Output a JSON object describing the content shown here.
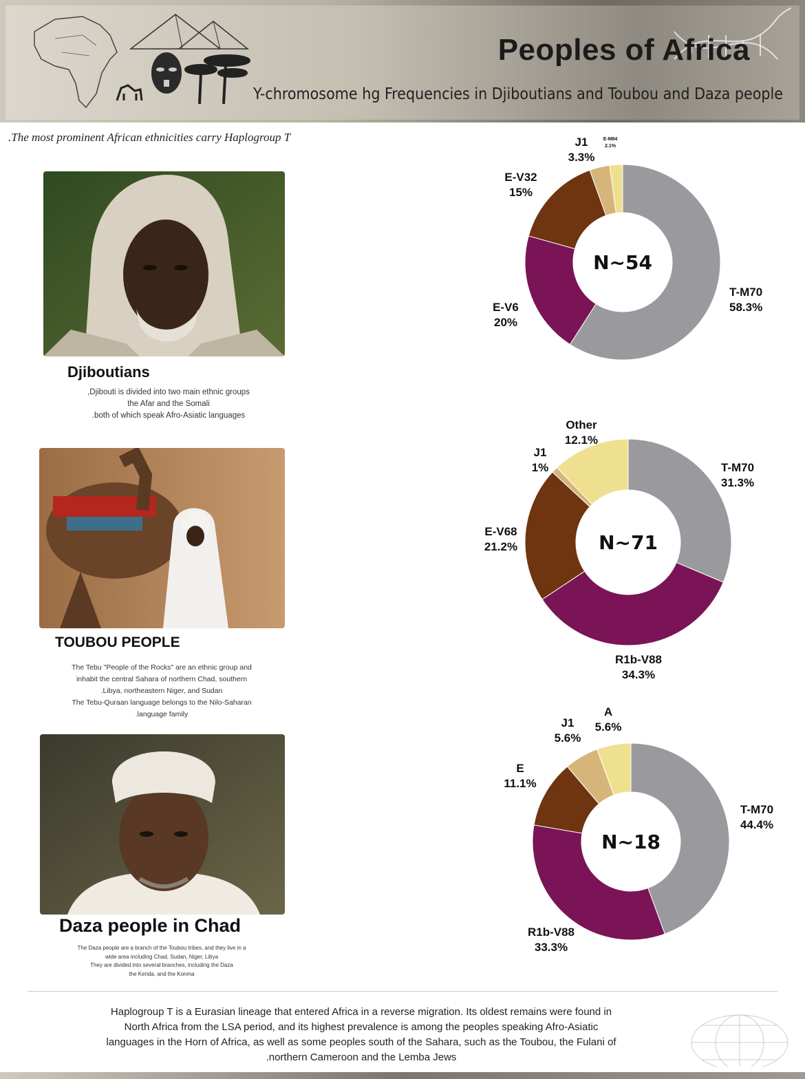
{
  "header": {
    "title": "Peoples of Africa",
    "subtitle": "Y-chromosome hg Frequencies in Djiboutians and Toubou and Daza people"
  },
  "tagline": ".The most prominent African ethnicities carry Haplogroup T",
  "groups": [
    {
      "name": "Djiboutians",
      "desc": [
        ",Djibouti is divided into two main ethnic groups",
        "the Afar and the Somali",
        ".both of which speak Afro-Asiatic languages"
      ]
    },
    {
      "name": "TOUBOU PEOPLE",
      "desc": [
        "The Tebu \"People of the Rocks\" are an ethnic group and",
        "inhabit the central Sahara of northern Chad, southern",
        ".Libya, northeastern Niger, and Sudan",
        "The Tebu-Quraan language belongs to the Nilo-Saharan",
        ".language family"
      ]
    },
    {
      "name": "Daza people in Chad",
      "desc": [
        "The Daza people are a branch of the Toubou tribes, and they live in a",
        "wide area including Chad, Sudan, Niger, Libya",
        "They are divided into several branches, including the Daza",
        "the Kerida, and the Konma"
      ]
    }
  ],
  "colors": {
    "T-M70": "#9a9a9e",
    "R1b-V88": "#7a1456",
    "E-V6": "#7a1456",
    "E-V32": "#6e3510",
    "E-V68": "#6e3510",
    "E": "#6e3510",
    "J1": "#d6b57a",
    "E-M84": "#eee08e",
    "Other": "#eee08e",
    "A": "#eee08e"
  },
  "chart_data": [
    {
      "type": "pie",
      "center_label": "N~54",
      "slices": [
        {
          "label": "T-M70",
          "value": 58.3,
          "text": "58.3%"
        },
        {
          "label": "E-V6",
          "value": 20,
          "text": "20%"
        },
        {
          "label": "E-V32",
          "value": 15,
          "text": "15%"
        },
        {
          "label": "J1",
          "value": 3.3,
          "text": "3.3%"
        },
        {
          "label": "E-M84",
          "value": 2.1,
          "text": "2.1%"
        }
      ]
    },
    {
      "type": "pie",
      "center_label": "N~71",
      "slices": [
        {
          "label": "T-M70",
          "value": 31.3,
          "text": "31.3%"
        },
        {
          "label": "R1b-V88",
          "value": 34.3,
          "text": "34.3%"
        },
        {
          "label": "E-V68",
          "value": 21.2,
          "text": "21.2%"
        },
        {
          "label": "J1",
          "value": 1,
          "text": "1%"
        },
        {
          "label": "Other",
          "value": 12.1,
          "text": "12.1%"
        }
      ]
    },
    {
      "type": "pie",
      "center_label": "N~18",
      "slices": [
        {
          "label": "T-M70",
          "value": 44.4,
          "text": "44.4%"
        },
        {
          "label": "R1b-V88",
          "value": 33.3,
          "text": "33.3%"
        },
        {
          "label": "E",
          "value": 11.1,
          "text": "11.1%"
        },
        {
          "label": "J1",
          "value": 5.6,
          "text": "5.6%"
        },
        {
          "label": "A",
          "value": 5.6,
          "text": "5.6%"
        }
      ]
    }
  ],
  "footer": [
    "Haplogroup T is a Eurasian lineage that entered Africa in a reverse migration. Its oldest remains were found in",
    "North Africa from the LSA period, and its highest prevalence is among the peoples speaking Afro-Asiatic",
    "languages in the Horn of Africa, as well as some peoples south of the Sahara, such as the Toubou, the Fulani of",
    ".northern Cameroon and the Lemba Jews"
  ]
}
